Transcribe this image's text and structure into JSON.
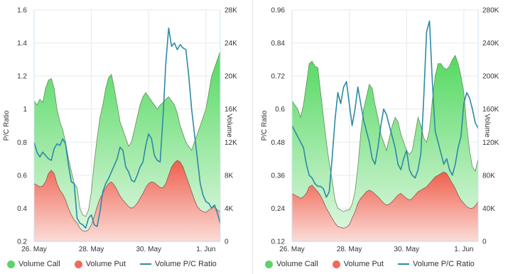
{
  "colors": {
    "call": "#5fd36a",
    "put": "#ee6b5a",
    "ratio": "#2b8aa6",
    "grid": "#e9e9e9"
  },
  "chart_data": [
    {
      "type": "area",
      "x_ticks": [
        "26. May",
        "28. May",
        "30. May",
        "1. Jun"
      ],
      "y_left": {
        "label": "P/C Ratio",
        "min": 0.2,
        "max": 1.6,
        "ticks": [
          "0.2",
          "0.4",
          "0.6",
          "0.8",
          "1",
          "1.2",
          "1.4",
          "1.6"
        ]
      },
      "y_right": {
        "label": "Volume",
        "min": 0,
        "max": 28000,
        "ticks": [
          "0",
          "4K",
          "8K",
          "12K",
          "16K",
          "20K",
          "24K",
          "28K"
        ]
      },
      "grid": true,
      "legend_position": "bottom",
      "x": [
        0,
        0.2,
        0.4,
        0.6,
        0.8,
        1,
        1.2,
        1.4,
        1.6,
        1.8,
        2,
        2.2,
        2.4,
        2.6,
        2.8,
        3,
        3.2,
        3.4,
        3.6,
        3.8,
        4,
        4.2,
        4.4,
        4.6,
        4.8,
        5,
        5.2,
        5.4,
        5.6,
        5.8,
        6,
        6.2,
        6.4,
        6.6,
        6.8,
        7,
        7.2,
        7.4,
        7.6,
        7.8,
        8,
        8.2,
        8.4,
        8.6,
        8.8,
        9,
        9.2,
        9.4,
        9.6,
        9.8,
        10,
        10.2,
        10.4,
        10.6,
        10.8,
        11,
        11.2,
        11.4,
        11.6,
        11.8,
        12,
        12.2,
        12.4,
        12.6,
        12.8,
        13
      ],
      "series": [
        {
          "name": "Volume Call",
          "axis": "right",
          "values": [
            17000,
            16500,
            17200,
            16800,
            18500,
            19500,
            19700,
            18500,
            16000,
            14500,
            13500,
            12000,
            10000,
            8500,
            7000,
            6500,
            4000,
            3200,
            3000,
            3800,
            6000,
            9500,
            12500,
            15000,
            16500,
            18500,
            19800,
            20200,
            18500,
            16500,
            14500,
            13500,
            12500,
            11500,
            12000,
            13500,
            15000,
            16500,
            17500,
            18000,
            17500,
            17000,
            16500,
            16000,
            16500,
            16800,
            17200,
            17500,
            17000,
            16500,
            15500,
            14000,
            13000,
            12000,
            11500,
            11000,
            12000,
            13000,
            14000,
            15000,
            16000,
            18000,
            20000,
            21000,
            22000,
            23000
          ]
        },
        {
          "name": "Volume Put",
          "axis": "right",
          "values": [
            7000,
            6800,
            6600,
            6700,
            7200,
            8200,
            8600,
            8200,
            7000,
            6200,
            5700,
            5000,
            4000,
            3200,
            2600,
            2200,
            1600,
            1300,
            1200,
            1400,
            2000,
            3000,
            4200,
            5200,
            5800,
            6500,
            7000,
            7200,
            6800,
            6200,
            5500,
            5000,
            4600,
            4200,
            4000,
            4200,
            4600,
            5200,
            5800,
            6500,
            7000,
            7200,
            7100,
            6800,
            6500,
            6500,
            7000,
            8000,
            9000,
            9500,
            9800,
            9600,
            9000,
            8000,
            7000,
            6000,
            5000,
            4200,
            3800,
            3600,
            3500,
            3800,
            4000,
            4200,
            3800,
            3600
          ]
        },
        {
          "name": "Volume P/C Ratio",
          "axis": "left",
          "values": [
            0.8,
            0.74,
            0.71,
            0.74,
            0.72,
            0.7,
            0.69,
            0.76,
            0.79,
            0.78,
            0.82,
            0.79,
            0.66,
            0.56,
            0.55,
            0.34,
            0.31,
            0.3,
            0.28,
            0.34,
            0.36,
            0.3,
            0.29,
            0.38,
            0.5,
            0.55,
            0.58,
            0.62,
            0.66,
            0.7,
            0.77,
            0.75,
            0.65,
            0.62,
            0.57,
            0.56,
            0.6,
            0.65,
            0.68,
            0.78,
            0.85,
            0.82,
            0.72,
            0.69,
            0.68,
            0.95,
            1.28,
            1.49,
            1.38,
            1.4,
            1.36,
            1.39,
            1.37,
            1.36,
            1.2,
            1.0,
            0.85,
            0.7,
            0.55,
            0.48,
            0.44,
            0.43,
            0.4,
            0.42,
            0.37,
            0.31
          ]
        }
      ]
    },
    {
      "type": "area",
      "x_ticks": [
        "26. May",
        "28. May",
        "30. May",
        "1. Jun"
      ],
      "y_left": {
        "label": "P/C Ratio",
        "min": 0.12,
        "max": 0.96,
        "ticks": [
          "0.12",
          "0.24",
          "0.36",
          "0.48",
          "0.6",
          "0.72",
          "0.84",
          "0.96"
        ]
      },
      "y_right": {
        "label": "Volume",
        "min": 0,
        "max": 280000,
        "ticks": [
          "0",
          "40K",
          "80K",
          "120K",
          "160K",
          "200K",
          "240K",
          "280K"
        ]
      },
      "grid": true,
      "legend_position": "bottom",
      "x": [
        0,
        0.2,
        0.4,
        0.6,
        0.8,
        1,
        1.2,
        1.4,
        1.6,
        1.8,
        2,
        2.2,
        2.4,
        2.6,
        2.8,
        3,
        3.2,
        3.4,
        3.6,
        3.8,
        4,
        4.2,
        4.4,
        4.6,
        4.8,
        5,
        5.2,
        5.4,
        5.6,
        5.8,
        6,
        6.2,
        6.4,
        6.6,
        6.8,
        7,
        7.2,
        7.4,
        7.6,
        7.8,
        8,
        8.2,
        8.4,
        8.6,
        8.8,
        9,
        9.2,
        9.4,
        9.6,
        9.8,
        10,
        10.2,
        10.4,
        10.6,
        10.8,
        11,
        11.2,
        11.4,
        11.6,
        11.8,
        12,
        12.2,
        12.4,
        12.6,
        12.8,
        13
      ],
      "series": [
        {
          "name": "Volume Call",
          "axis": "right",
          "values": [
            170000,
            165000,
            160000,
            150000,
            165000,
            190000,
            215000,
            218000,
            212000,
            210000,
            180000,
            150000,
            120000,
            95000,
            75000,
            50000,
            40000,
            38000,
            36000,
            38000,
            38000,
            45000,
            60000,
            90000,
            130000,
            160000,
            175000,
            190000,
            185000,
            165000,
            150000,
            130000,
            120000,
            110000,
            125000,
            140000,
            150000,
            145000,
            130000,
            120000,
            110000,
            105000,
            110000,
            130000,
            150000,
            140000,
            125000,
            120000,
            135000,
            170000,
            200000,
            215000,
            215000,
            210000,
            208000,
            212000,
            220000,
            225000,
            215000,
            200000,
            180000,
            140000,
            110000,
            90000,
            85000,
            100000
          ]
        },
        {
          "name": "Volume Put",
          "axis": "right",
          "values": [
            58000,
            56000,
            54000,
            52000,
            54000,
            58000,
            66000,
            68000,
            64000,
            60000,
            55000,
            48000,
            40000,
            34000,
            28000,
            22000,
            18000,
            17000,
            16000,
            17000,
            20000,
            28000,
            36000,
            46000,
            52000,
            56000,
            60000,
            62000,
            60000,
            57000,
            54000,
            50000,
            46000,
            44000,
            45000,
            48000,
            52000,
            56000,
            58000,
            55000,
            52000,
            50000,
            52000,
            56000,
            60000,
            62000,
            64000,
            66000,
            70000,
            74000,
            78000,
            80000,
            82000,
            84000,
            82000,
            76000,
            70000,
            64000,
            56000,
            50000,
            46000,
            42000,
            40000,
            40000,
            43000,
            48000
          ]
        },
        {
          "name": "Volume P/C Ratio",
          "axis": "left",
          "values": [
            0.54,
            0.52,
            0.5,
            0.48,
            0.46,
            0.4,
            0.36,
            0.35,
            0.33,
            0.32,
            0.32,
            0.31,
            0.28,
            0.3,
            0.42,
            0.56,
            0.66,
            0.62,
            0.68,
            0.7,
            0.62,
            0.54,
            0.6,
            0.68,
            0.62,
            0.56,
            0.52,
            0.48,
            0.42,
            0.4,
            0.46,
            0.54,
            0.6,
            0.58,
            0.54,
            0.5,
            0.46,
            0.4,
            0.38,
            0.42,
            0.45,
            0.38,
            0.36,
            0.35,
            0.38,
            0.44,
            0.64,
            0.88,
            0.92,
            0.7,
            0.52,
            0.48,
            0.44,
            0.4,
            0.42,
            0.38,
            0.36,
            0.4,
            0.46,
            0.5,
            0.62,
            0.66,
            0.64,
            0.6,
            0.55,
            0.53
          ]
        }
      ]
    }
  ]
}
